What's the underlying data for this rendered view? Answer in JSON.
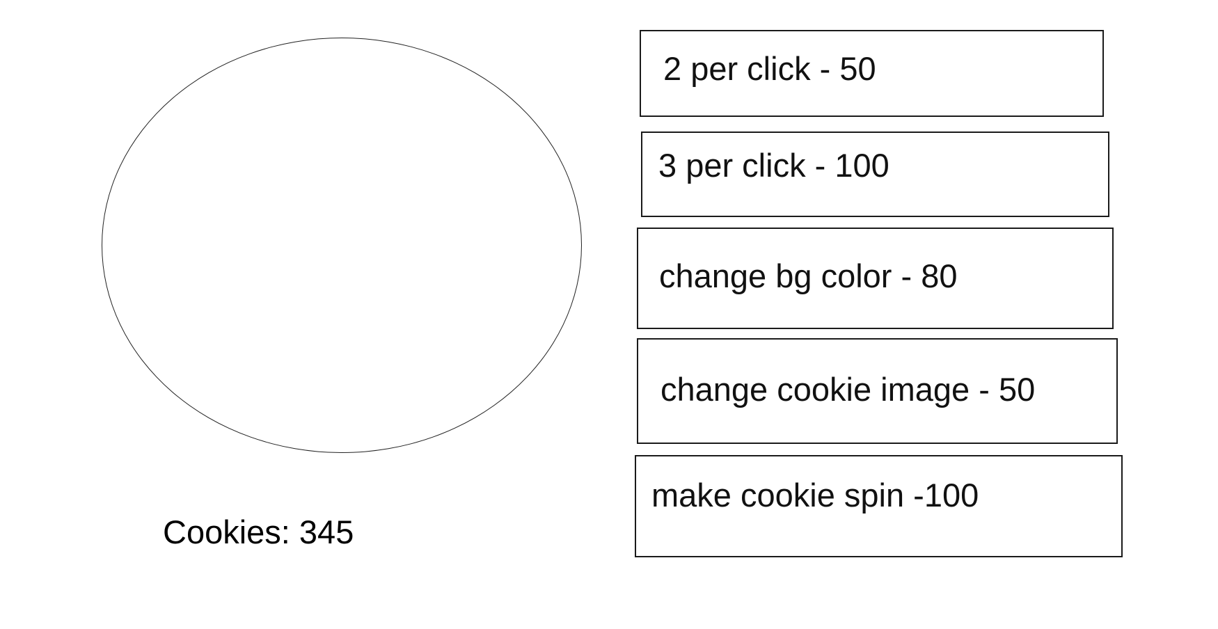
{
  "counter": {
    "label": "Cookies: 345",
    "value": 345
  },
  "shop": {
    "items": [
      {
        "label": "2 per click - 50"
      },
      {
        "label": "3 per click - 100"
      },
      {
        "label": "change bg color - 80"
      },
      {
        "label": "change cookie image - 50"
      },
      {
        "label": "make cookie spin  -100"
      }
    ]
  },
  "colors": {
    "background": "#ffffff",
    "border": "#1a1a1a",
    "text": "#000000"
  }
}
